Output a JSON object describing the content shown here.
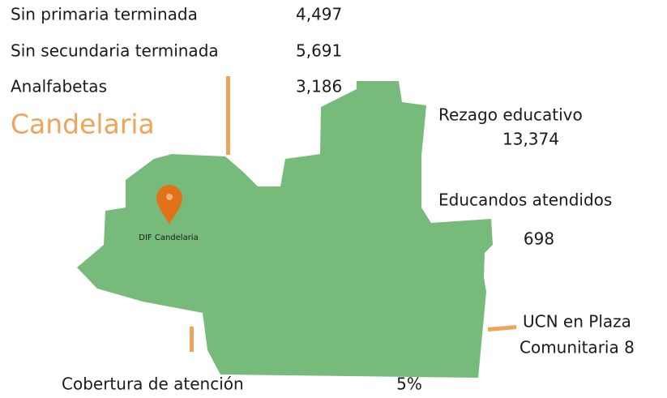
{
  "stats": [
    {
      "label": "Sin primaria terminada",
      "value": "4,497"
    },
    {
      "label": "Sin secundaria terminada",
      "value": "5,691"
    },
    {
      "label": "Analfabetas",
      "value": "3,186"
    }
  ],
  "municipality": "Candelaria",
  "marker": {
    "label": "DIF Candelaria"
  },
  "indicators": {
    "rezago": {
      "label": "Rezago educativo",
      "value": "13,374"
    },
    "educandos": {
      "label": "Educandos atendidos",
      "value": "698"
    },
    "ucn": {
      "label_lines": [
        "UCN en Plaza",
        "Comunitaria 8"
      ]
    },
    "cobertura": {
      "label": "Cobertura de atención",
      "value": "5%"
    }
  }
}
